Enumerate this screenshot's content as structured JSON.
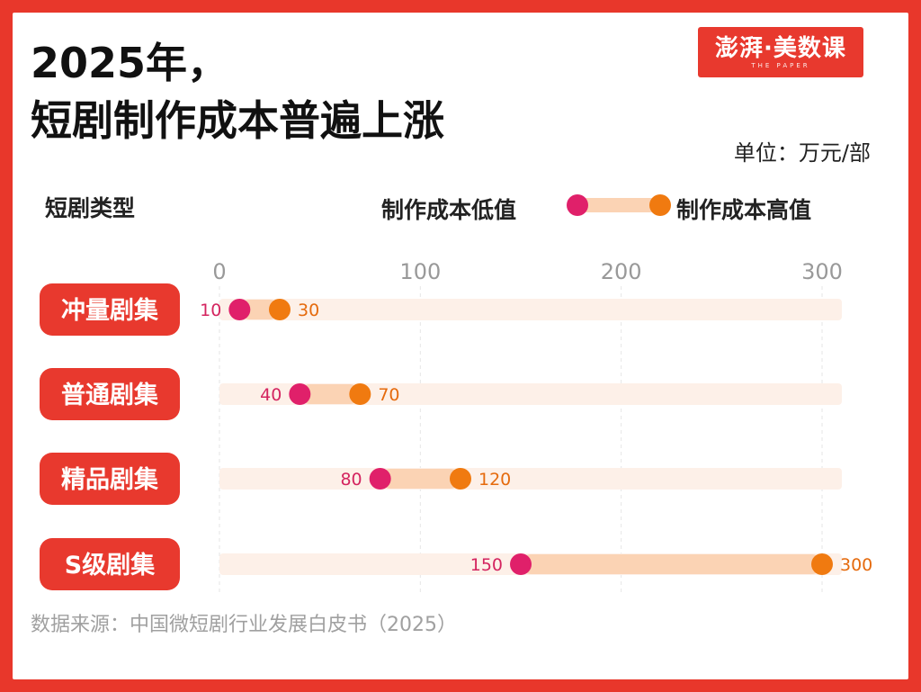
{
  "header": {
    "title_line1": "2025年，",
    "title_line2": "短剧制作成本普遍上涨",
    "logo_text": "澎湃·美数课",
    "logo_sub": "THE PAPER",
    "unit": "单位：万元/部"
  },
  "legend": {
    "category_header": "短剧类型",
    "low_label": "制作成本低值",
    "high_label": "制作成本高值"
  },
  "colors": {
    "background": "#e8372b",
    "low_dot": "#e0206a",
    "high_dot": "#f07a10",
    "range_bar": "#fbd3b4",
    "track": "#fdf0e8",
    "badge": "#e8392e"
  },
  "chart_data": {
    "type": "dumbbell",
    "title": "2025年，短剧制作成本普遍上涨",
    "xlabel": "",
    "ylabel": "短剧类型",
    "unit": "万元/部",
    "xlim": [
      0,
      300
    ],
    "ticks": [
      0,
      100,
      200,
      300
    ],
    "grid": true,
    "legend_position": "top-right",
    "categories": [
      "冲量剧集",
      "普通剧集",
      "精品剧集",
      "S级剧集"
    ],
    "series": [
      {
        "name": "制作成本低值",
        "values": [
          10,
          40,
          80,
          150
        ]
      },
      {
        "name": "制作成本高值",
        "values": [
          30,
          70,
          120,
          300
        ]
      }
    ]
  },
  "footer": {
    "source": "数据来源：中国微短剧行业发展白皮书（2025）"
  }
}
